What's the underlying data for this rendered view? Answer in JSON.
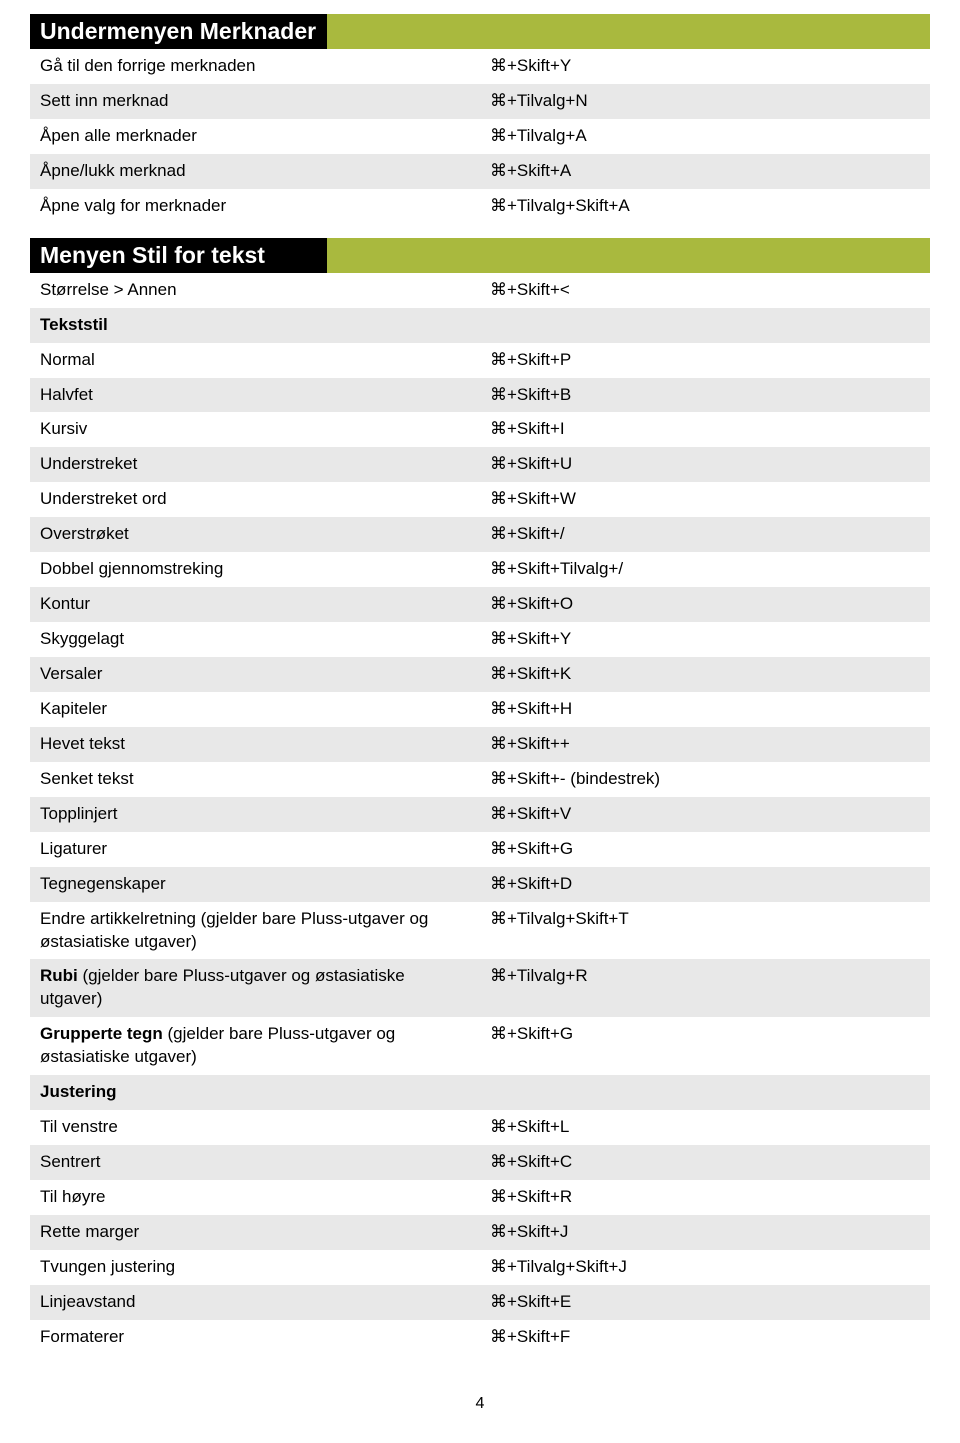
{
  "sections": [
    {
      "title": "Undermenyen Merknader",
      "rows": [
        {
          "label": "Gå til den forrige merknaden",
          "shortcut": "⌘+Skift+Y",
          "shade": "odd"
        },
        {
          "label": "Sett inn merknad",
          "shortcut": "⌘+Tilvalg+N",
          "shade": "even"
        },
        {
          "label": "Åpen alle merknader",
          "shortcut": "⌘+Tilvalg+A",
          "shade": "odd"
        },
        {
          "label": "Åpne/lukk merknad",
          "shortcut": "⌘+Skift+A",
          "shade": "even"
        },
        {
          "label": "Åpne valg for merknader",
          "shortcut": "⌘+Tilvalg+Skift+A",
          "shade": "odd"
        }
      ]
    },
    {
      "title": "Menyen Stil for tekst",
      "rows": [
        {
          "label": "Størrelse > Annen",
          "shortcut": "⌘+Skift+<",
          "shade": "odd"
        },
        {
          "label": "Tekststil",
          "shortcut": "",
          "shade": "even",
          "subheader": true
        },
        {
          "label": "Normal",
          "shortcut": "⌘+Skift+P",
          "shade": "odd"
        },
        {
          "label": "Halvfet",
          "shortcut": "⌘+Skift+B",
          "shade": "even"
        },
        {
          "label": "Kursiv",
          "shortcut": "⌘+Skift+I",
          "shade": "odd"
        },
        {
          "label": "Understreket",
          "shortcut": "⌘+Skift+U",
          "shade": "even"
        },
        {
          "label": "Understreket ord",
          "shortcut": "⌘+Skift+W",
          "shade": "odd"
        },
        {
          "label": "Overstrøket",
          "shortcut": "⌘+Skift+/",
          "shade": "even"
        },
        {
          "label": "Dobbel gjennomstreking",
          "shortcut": "⌘+Skift+Tilvalg+/",
          "shade": "odd"
        },
        {
          "label": "Kontur",
          "shortcut": "⌘+Skift+O",
          "shade": "even"
        },
        {
          "label": "Skyggelagt",
          "shortcut": "⌘+Skift+Y",
          "shade": "odd"
        },
        {
          "label": "Versaler",
          "shortcut": "⌘+Skift+K",
          "shade": "even"
        },
        {
          "label": "Kapiteler",
          "shortcut": "⌘+Skift+H",
          "shade": "odd"
        },
        {
          "label": "Hevet tekst",
          "shortcut": "⌘+Skift++",
          "shade": "even"
        },
        {
          "label": "Senket tekst",
          "shortcut": "⌘+Skift+- (bindestrek)",
          "shade": "odd"
        },
        {
          "label": "Topplinjert",
          "shortcut": "⌘+Skift+V",
          "shade": "even"
        },
        {
          "label": "Ligaturer",
          "shortcut": "⌘+Skift+G",
          "shade": "odd"
        },
        {
          "label": "Tegnegenskaper",
          "shortcut": "⌘+Skift+D",
          "shade": "even"
        },
        {
          "label": "Endre artikkelretning (gjelder bare Pluss-utgaver og østasiatiske utgaver)",
          "shortcut": "⌘+Tilvalg+Skift+T",
          "shade": "odd"
        },
        {
          "label": "Rubi (gjelder bare Pluss-utgaver og østasiatiske utgaver)",
          "shortcut": "⌘+Tilvalg+R",
          "shade": "even",
          "boldPrefix": "Rubi"
        },
        {
          "label": "Grupperte tegn (gjelder bare Pluss-utgaver og østasiatiske utgaver)",
          "shortcut": "⌘+Skift+G",
          "shade": "odd",
          "boldPrefix": "Grupperte tegn"
        },
        {
          "label": "Justering",
          "shortcut": "",
          "shade": "even",
          "subheader": true
        },
        {
          "label": "Til venstre",
          "shortcut": "⌘+Skift+L",
          "shade": "odd"
        },
        {
          "label": "Sentrert",
          "shortcut": "⌘+Skift+C",
          "shade": "even"
        },
        {
          "label": "Til høyre",
          "shortcut": "⌘+Skift+R",
          "shade": "odd"
        },
        {
          "label": "Rette marger",
          "shortcut": "⌘+Skift+J",
          "shade": "even"
        },
        {
          "label": "Tvungen justering",
          "shortcut": "⌘+Tilvalg+Skift+J",
          "shade": "odd"
        },
        {
          "label": "Linjeavstand",
          "shortcut": "⌘+Skift+E",
          "shade": "even"
        },
        {
          "label": "Formaterer",
          "shortcut": "⌘+Skift+F",
          "shade": "odd"
        }
      ]
    }
  ],
  "pageNumber": "4",
  "colors": {
    "headerBg": "#000000",
    "headerText": "#ffffff",
    "accent": "#a9b93e",
    "rowEven": "#e8e8e8",
    "rowOdd": "#ffffff"
  }
}
